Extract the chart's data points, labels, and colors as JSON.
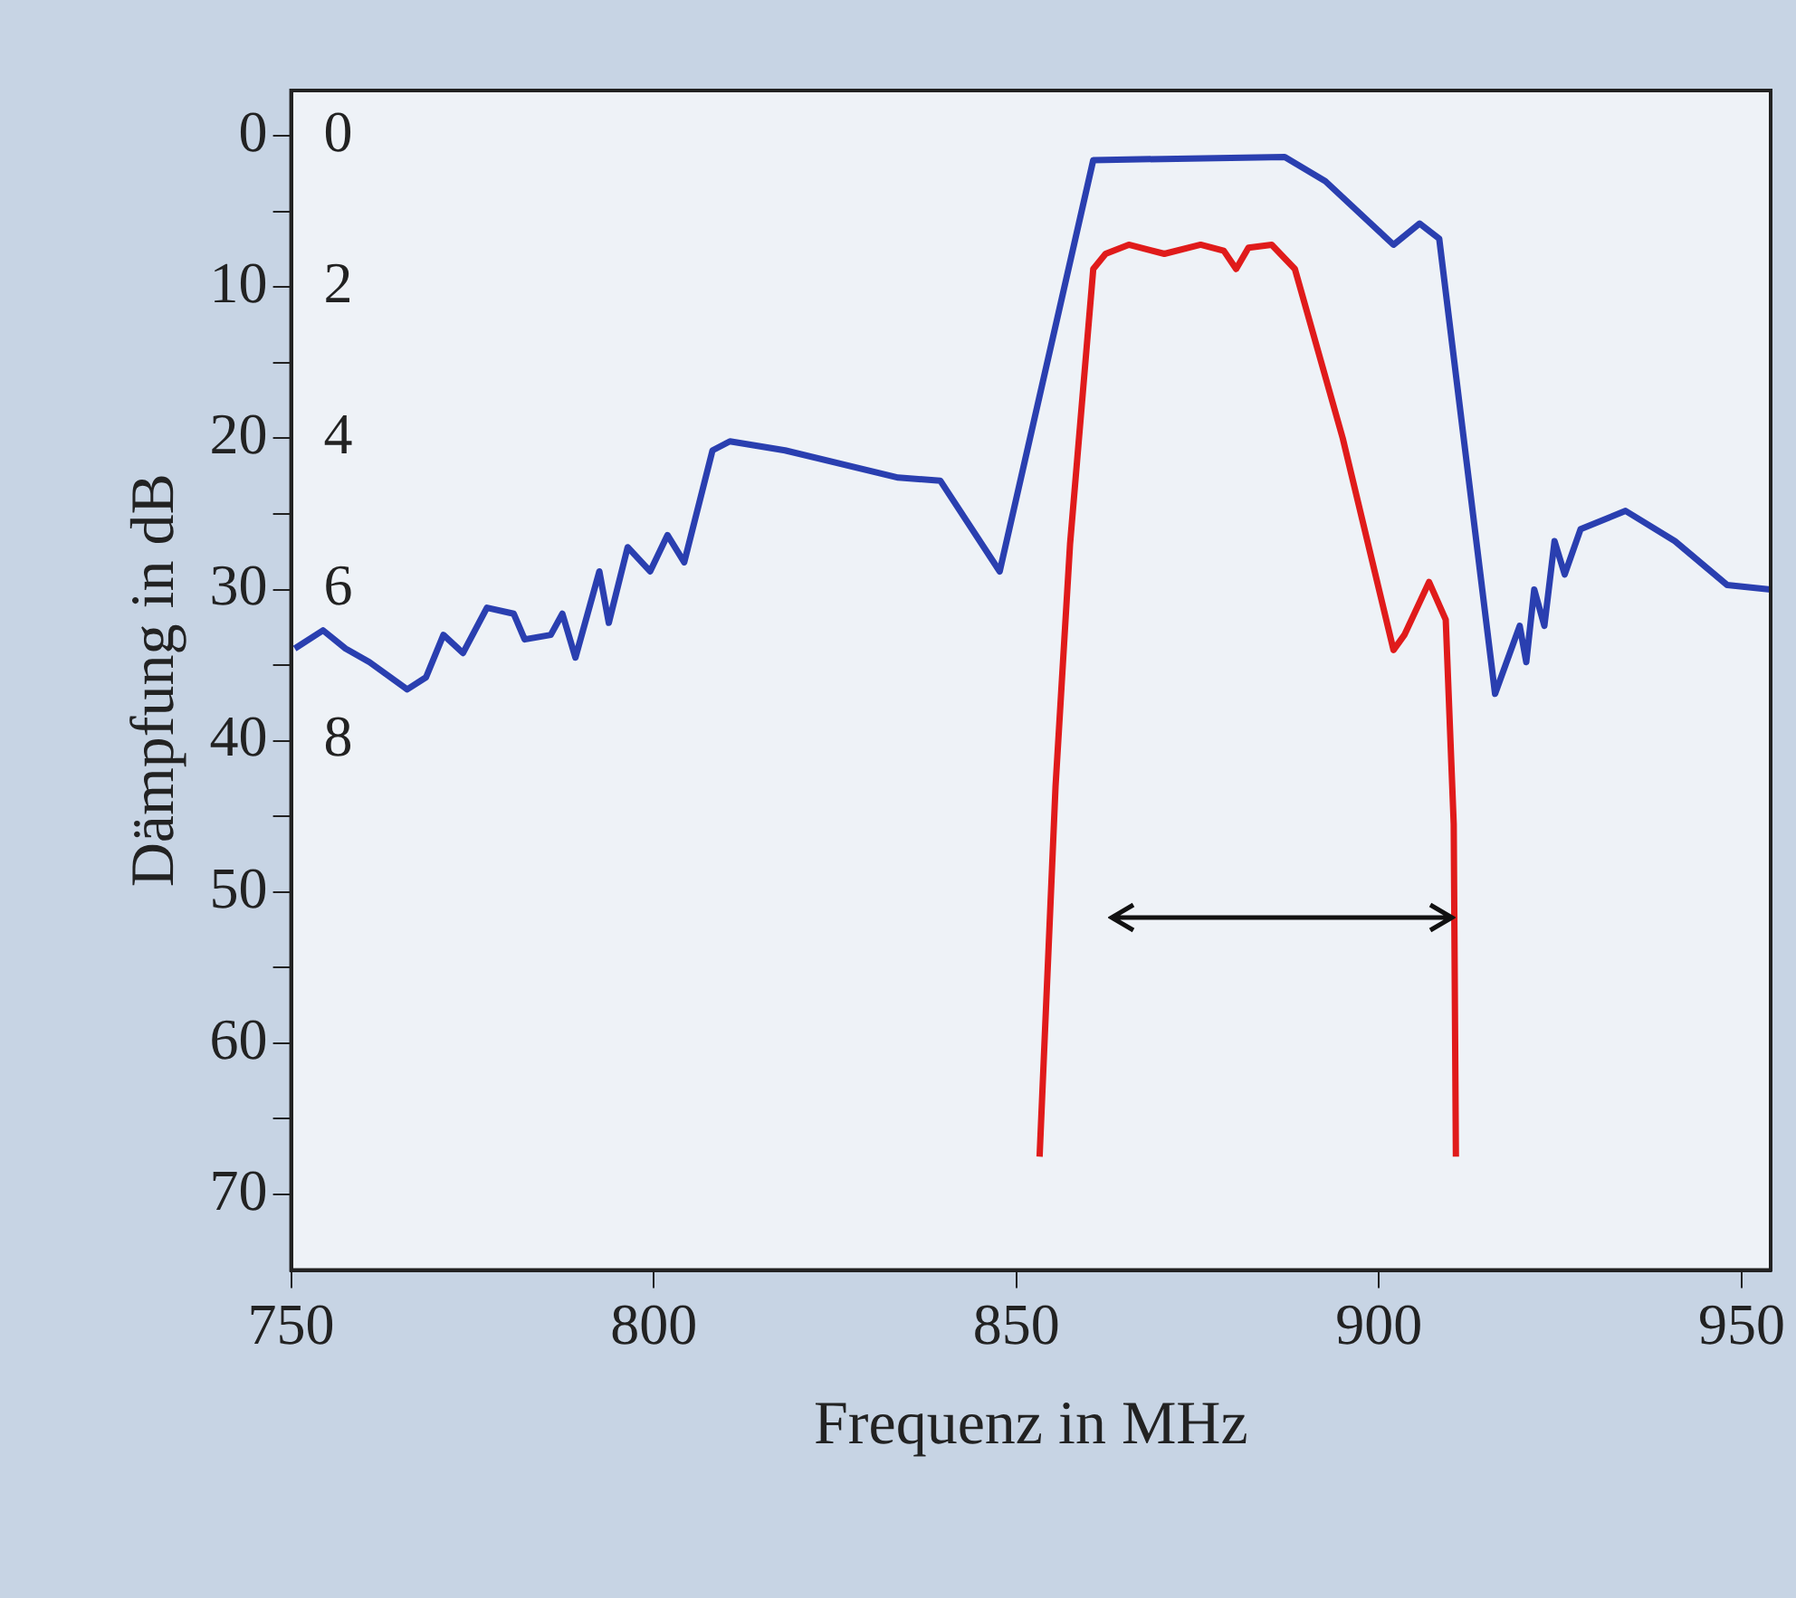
{
  "chart_data": {
    "type": "line",
    "xlabel": "Frequenz in MHz",
    "ylabel": "Dämpfung in dB",
    "xlim": [
      750,
      954
    ],
    "xticks": [
      750,
      800,
      850,
      900,
      950
    ],
    "ylim": [
      75,
      -3
    ],
    "yticks": [
      0,
      {
        "value": 5,
        "label": null
      },
      10,
      {
        "value": 15,
        "label": null
      },
      20,
      {
        "value": 25,
        "label": null
      },
      30,
      {
        "value": 35,
        "label": null
      },
      40,
      {
        "value": 45,
        "label": null
      },
      50,
      {
        "value": 55,
        "label": null
      },
      60,
      {
        "value": 65,
        "label": null
      },
      70
    ],
    "y2lim": [
      15,
      -0.6
    ],
    "y2ticks": [
      0,
      2,
      4,
      6,
      8
    ],
    "grid": false,
    "legend": false,
    "marker": "none",
    "line_style": "solid",
    "series": [
      {
        "color": "#2a3fb0",
        "x": [
          750.5,
          754.4,
          757.5,
          760.8,
          766,
          768.6,
          771,
          773.7,
          777,
          780.7,
          782.2,
          785.8,
          787.4,
          789.2,
          792.5,
          793.8,
          796.4,
          799.5,
          801.9,
          804.2,
          808.1,
          810.5,
          818.1,
          833.7,
          839.5,
          847.7,
          860.6,
          887,
          892.6,
          902,
          905.6,
          908.3,
          916,
          919.4,
          920.3,
          921.4,
          922.8,
          924.2,
          925.6,
          927.8,
          934,
          940.8,
          948,
          954
        ],
        "values": [
          33.9,
          32.7,
          33.9,
          34.8,
          36.6,
          35.8,
          33,
          34.2,
          31.2,
          31.6,
          33.3,
          33,
          31.6,
          34.5,
          28.8,
          32.2,
          27.2,
          28.8,
          26.4,
          28.2,
          20.8,
          20.2,
          20.8,
          22.6,
          22.8,
          28.8,
          1.6,
          1.4,
          3,
          7.2,
          5.8,
          6.8,
          36.9,
          32.4,
          34.8,
          30,
          32.4,
          26.8,
          29,
          26,
          24.8,
          26.8,
          29.7,
          30
        ]
      },
      {
        "color": "#e01b1b",
        "axis": "y2",
        "x": [
          853.2,
          855.4,
          857.4,
          860.6,
          862.3,
          865.5,
          870.4,
          875.4,
          878.6,
          880.3,
          882,
          885.2,
          888.4,
          895,
          902,
          903.5,
          906.9,
          909.2,
          910.3,
          910.6
        ],
        "values": [
          13.5,
          8.6,
          5.4,
          1.76,
          1.56,
          1.44,
          1.56,
          1.44,
          1.52,
          1.76,
          1.48,
          1.44,
          1.76,
          4,
          6.8,
          6.6,
          5.9,
          6.4,
          9.1,
          13.5
        ]
      }
    ]
  }
}
